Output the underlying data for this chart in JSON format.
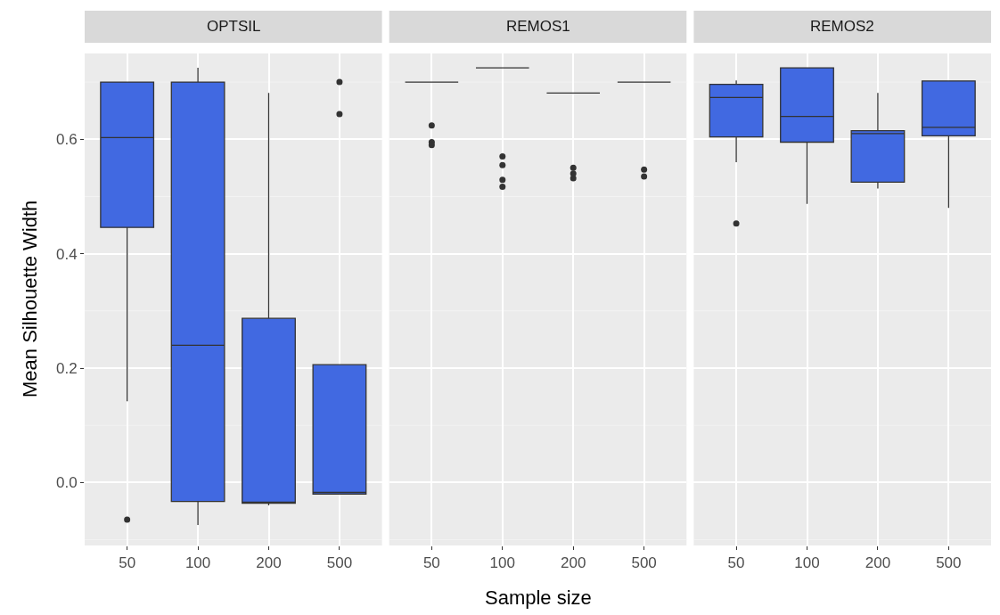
{
  "chart_data": [
    {
      "type": "box",
      "title": "OPTSIL",
      "ylabel": "Mean Silhouette Width",
      "categories": [
        "50",
        "100",
        "200",
        "500"
      ],
      "color": "#4169e1",
      "boxes": [
        {
          "low": 0.142,
          "q1": 0.446,
          "median": 0.603,
          "q3": 0.7,
          "high": 0.7,
          "outliers": [
            -0.065
          ]
        },
        {
          "low": -0.074,
          "q1": -0.033,
          "median": 0.24,
          "q3": 0.7,
          "high": 0.725
        },
        {
          "low": -0.04,
          "q1": -0.036,
          "median": -0.035,
          "q3": 0.287,
          "high": 0.681
        },
        {
          "low": -0.02,
          "q1": -0.02,
          "median": -0.017,
          "q3": 0.206,
          "high": 0.206,
          "outliers": [
            0.7,
            0.644
          ]
        }
      ],
      "ylim": [
        -0.11,
        0.75
      ],
      "yticks": [
        {
          "value": 0,
          "label": "0.0"
        },
        0.2,
        0.4,
        0.6
      ],
      "grid": true
    },
    {
      "type": "box",
      "title": "REMOS1",
      "xlabel": "Sample size",
      "categories": [
        "50",
        "100",
        "200",
        "500"
      ],
      "boxes": [
        {
          "low": 0.7,
          "q1": 0.7,
          "median": 0.7,
          "q3": 0.7,
          "high": 0.7,
          "outliers": [
            0.624,
            0.595,
            0.59
          ]
        },
        {
          "low": 0.725,
          "q1": 0.725,
          "median": 0.725,
          "q3": 0.725,
          "high": 0.725,
          "outliers": [
            0.57,
            0.555,
            0.529,
            0.517
          ]
        },
        {
          "low": 0.681,
          "q1": 0.681,
          "median": 0.681,
          "q3": 0.681,
          "high": 0.681,
          "outliers": [
            0.55,
            0.54,
            0.532
          ]
        },
        {
          "low": 0.7,
          "q1": 0.7,
          "median": 0.7,
          "q3": 0.7,
          "high": 0.7,
          "outliers": [
            0.547,
            0.535
          ]
        }
      ],
      "ylim": [
        -0.11,
        0.75
      ],
      "yticks": [
        0,
        0.2,
        0.4,
        0.6
      ],
      "grid": true,
      "tick_labels": "x"
    },
    {
      "type": "box",
      "title": "REMOS2",
      "categories": [
        "50",
        "100",
        "200",
        "500"
      ],
      "color": "#4169e1",
      "boxes": [
        {
          "low": 0.56,
          "q1": 0.604,
          "median": 0.673,
          "q3": 0.696,
          "high": 0.703,
          "outliers": [
            0.453
          ]
        },
        {
          "low": 0.487,
          "q1": 0.595,
          "median": 0.64,
          "q3": 0.725,
          "high": 0.725
        },
        {
          "low": 0.514,
          "q1": 0.525,
          "median": 0.61,
          "q3": 0.615,
          "high": 0.681
        },
        {
          "low": 0.48,
          "q1": 0.606,
          "median": 0.621,
          "q3": 0.702,
          "high": 0.702
        }
      ],
      "ylim": [
        -0.11,
        0.75
      ],
      "yticks": [
        0,
        0.2,
        0.4,
        0.6
      ],
      "grid": true,
      "tick_labels": "x"
    }
  ]
}
